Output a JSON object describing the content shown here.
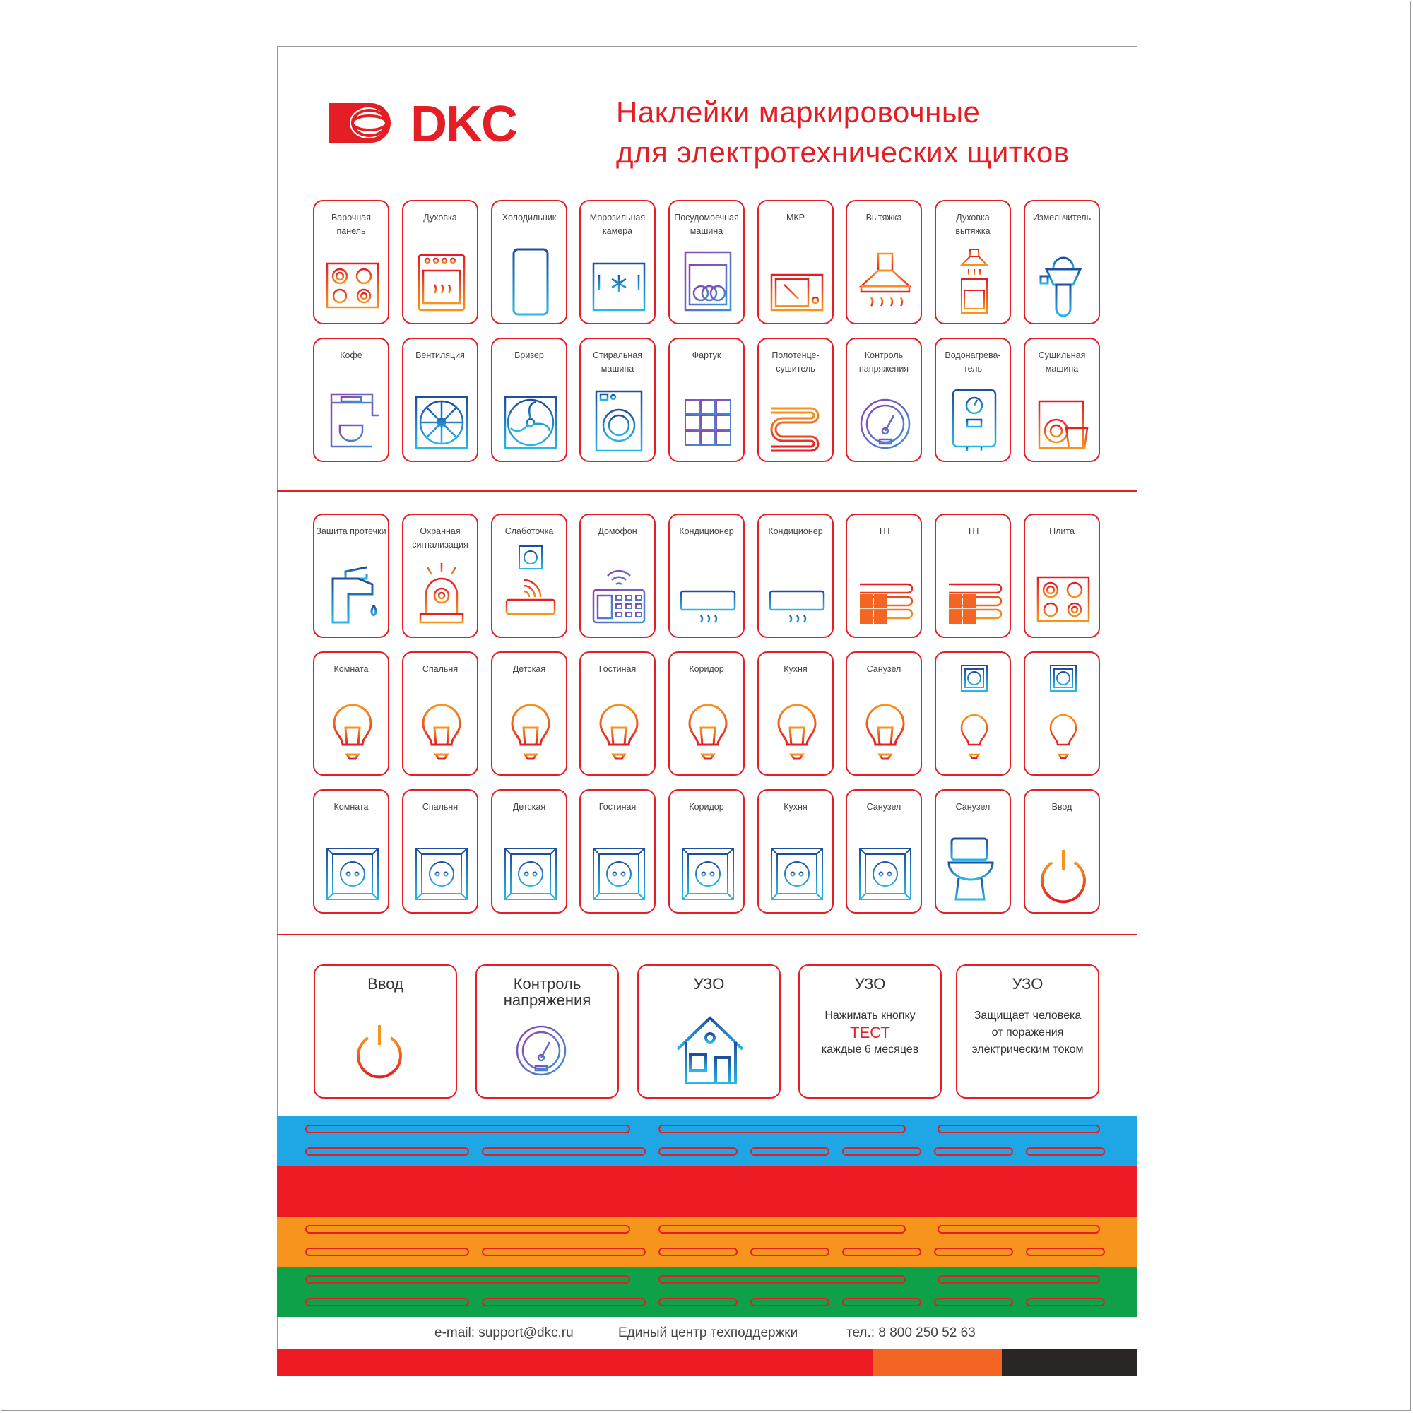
{
  "brand": {
    "logo_text": "DKC",
    "color": "#e31e24"
  },
  "header": {
    "title_line1": "Наклейки маркировочные",
    "title_line2": "для электротехнических щитков"
  },
  "section1": [
    {
      "label": "Варочная панель",
      "icon": "stove-icon"
    },
    {
      "label": "Духовка",
      "icon": "oven-icon"
    },
    {
      "label": "Холодильник",
      "icon": "fridge-icon"
    },
    {
      "label": "Морозильная камера",
      "icon": "freezer-icon"
    },
    {
      "label": "Посудомоечная машина",
      "icon": "dishwasher-icon"
    },
    {
      "label": "МКР",
      "icon": "microwave-icon"
    },
    {
      "label": "Вытяжка",
      "icon": "hood-icon"
    },
    {
      "label": "Духовка вытяжка",
      "icon": "hood-oven-icon"
    },
    {
      "label": "Измельчитель",
      "icon": "grinder-icon"
    },
    {
      "label": "Кофе",
      "icon": "coffee-machine-icon"
    },
    {
      "label": "Вентиляция",
      "icon": "ventilation-fan-icon"
    },
    {
      "label": "Бризер",
      "icon": "breezer-icon"
    },
    {
      "label": "Стиральная машина",
      "icon": "washing-machine-icon"
    },
    {
      "label": "Фартук",
      "icon": "tiles-icon"
    },
    {
      "label": "Полотенце-сушитель",
      "icon": "towel-dryer-icon"
    },
    {
      "label": "Контроль напряжения",
      "icon": "voltage-gauge-icon"
    },
    {
      "label": "Водонагрева-тель",
      "icon": "water-heater-icon"
    },
    {
      "label": "Сушильная машина",
      "icon": "dryer-icon"
    }
  ],
  "section2": [
    {
      "label": "Защита протечки",
      "icon": "faucet-icon"
    },
    {
      "label": "Охранная сигнализация",
      "icon": "siren-icon"
    },
    {
      "label": "Слаботочка",
      "icon": "router-socket-icon"
    },
    {
      "label": "Домофон",
      "icon": "intercom-icon"
    },
    {
      "label": "Кондиционер",
      "icon": "air-conditioner-icon"
    },
    {
      "label": "Кондиционер",
      "icon": "air-conditioner-icon"
    },
    {
      "label": "ТП",
      "icon": "floor-heating-icon"
    },
    {
      "label": "ТП",
      "icon": "floor-heating-icon"
    },
    {
      "label": "Плита",
      "icon": "stove-icon"
    },
    {
      "label": "Комната",
      "icon": "bulb-icon"
    },
    {
      "label": "Спальня",
      "icon": "bulb-icon"
    },
    {
      "label": "Детская",
      "icon": "bulb-icon"
    },
    {
      "label": "Гостиная",
      "icon": "bulb-icon"
    },
    {
      "label": "Коридор",
      "icon": "bulb-icon"
    },
    {
      "label": "Кухня",
      "icon": "bulb-icon"
    },
    {
      "label": "Санузел",
      "icon": "bulb-icon"
    },
    {
      "label": "",
      "icon": "socket-bulb-icon"
    },
    {
      "label": "",
      "icon": "socket-bulb-icon"
    },
    {
      "label": "Комната",
      "icon": "socket-icon"
    },
    {
      "label": "Спальня",
      "icon": "socket-icon"
    },
    {
      "label": "Детская",
      "icon": "socket-icon"
    },
    {
      "label": "Гостиная",
      "icon": "socket-icon"
    },
    {
      "label": "Коридор",
      "icon": "socket-icon"
    },
    {
      "label": "Кухня",
      "icon": "socket-icon"
    },
    {
      "label": "Санузел",
      "icon": "socket-icon"
    },
    {
      "label": "Санузел",
      "icon": "toilet-icon"
    },
    {
      "label": "Ввод",
      "icon": "power-icon"
    }
  ],
  "section3": [
    {
      "title": "Ввод",
      "icon": "power-icon"
    },
    {
      "title": "Контроль напряжения",
      "icon": "voltage-gauge-icon"
    },
    {
      "title": "УЗО",
      "icon": "house-icon"
    },
    {
      "title": "УЗО",
      "line1": "Нажимать кнопку",
      "highlight": "ТЕСТ",
      "line2": "каждые 6 месяцев"
    },
    {
      "title": "УЗО",
      "line1": "Защищает человека",
      "line2": "от поражения",
      "line3": "электрическим током"
    }
  ],
  "bands": [
    {
      "color": "#1ea7e4"
    },
    {
      "color": "#ed1c24"
    },
    {
      "color": "#f7941d"
    },
    {
      "color": "#0fa14a"
    }
  ],
  "footer": {
    "email": "e-mail: support@dkc.ru",
    "center": "Единый центр техподдержки",
    "phone": "тел.: 8 800 250 52 63"
  },
  "bottom_bar": [
    {
      "color": "#ed1c24"
    },
    {
      "color": "#f26522"
    },
    {
      "color": "#2b2626"
    }
  ]
}
